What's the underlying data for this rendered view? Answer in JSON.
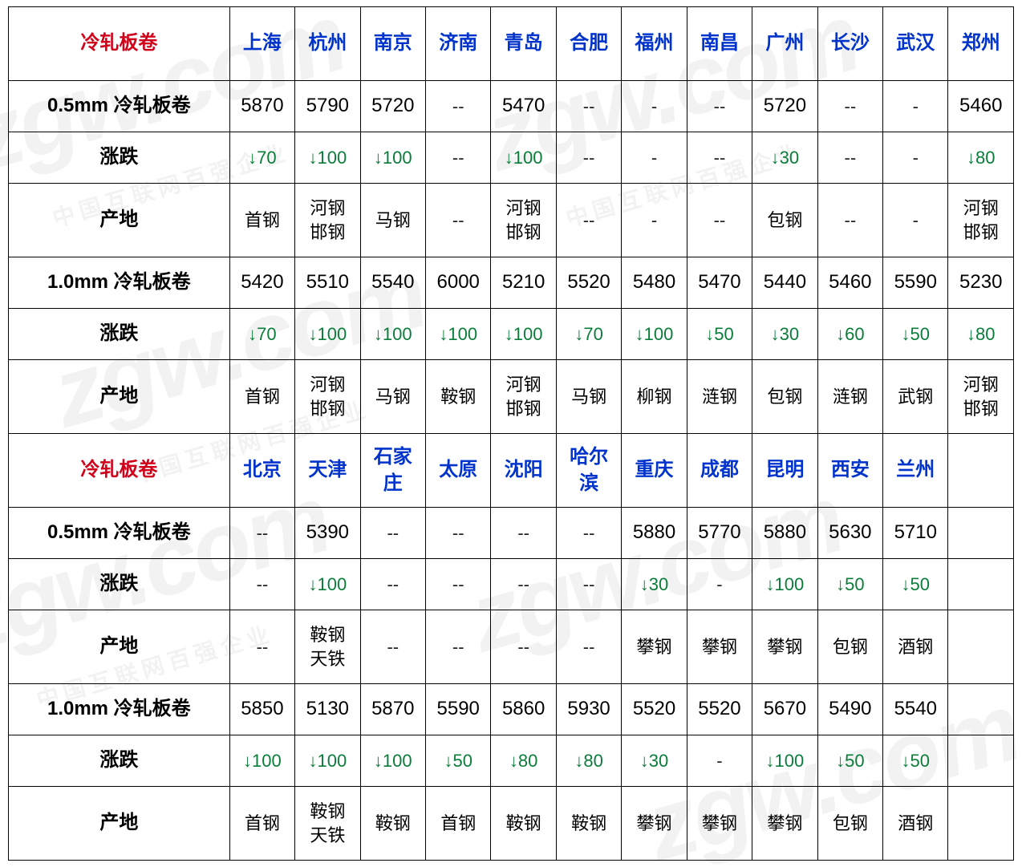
{
  "watermark": {
    "main": "zgw.com",
    "sub": "中国互联网百强企业"
  },
  "colors": {
    "border": "#000000",
    "header_red": "#d0021b",
    "city_blue": "#0033cc",
    "change_green": "#0a7d3a",
    "background": "#ffffff"
  },
  "table": {
    "col_widths": {
      "category_pct": 22,
      "city_pct": 6.5
    },
    "font_sizes": {
      "header": 24,
      "city": 24,
      "price": 24,
      "body": 22
    },
    "sections": [
      {
        "header_label": "冷轧板卷",
        "header_color": "#d0021b",
        "cities": [
          "上海",
          "杭州",
          "南京",
          "济南",
          "青岛",
          "合肥",
          "福州",
          "南昌",
          "广州",
          "长沙",
          "武汉",
          "郑州"
        ],
        "rows": [
          {
            "label": "0.5mm 冷轧板卷",
            "type": "price",
            "cells": [
              "5870",
              "5790",
              "5720",
              "--",
              "5470",
              "--",
              "-",
              "--",
              "5720",
              "--",
              "-",
              "5460"
            ]
          },
          {
            "label": "涨跌",
            "type": "change",
            "cells": [
              "↓70",
              "↓100",
              "↓100",
              "--",
              "↓100",
              "--",
              "-",
              "--",
              "↓30",
              "--",
              "-",
              "↓80"
            ]
          },
          {
            "label": "产地",
            "type": "origin",
            "tall": true,
            "cells": [
              "首钢",
              "河钢邯钢",
              "马钢",
              "--",
              "河钢邯钢",
              "--",
              "-",
              "--",
              "包钢",
              "--",
              "-",
              "河钢邯钢"
            ]
          },
          {
            "label": "1.0mm 冷轧板卷",
            "type": "price",
            "cells": [
              "5420",
              "5510",
              "5540",
              "6000",
              "5210",
              "5520",
              "5480",
              "5470",
              "5440",
              "5460",
              "5590",
              "5230"
            ]
          },
          {
            "label": "涨跌",
            "type": "change",
            "cells": [
              "↓70",
              "↓100",
              "↓100",
              "↓100",
              "↓100",
              "↓70",
              "↓100",
              "↓50",
              "↓30",
              "↓60",
              "↓50",
              "↓80"
            ]
          },
          {
            "label": "产地",
            "type": "origin",
            "tall": true,
            "cells": [
              "首钢",
              "河钢邯钢",
              "马钢",
              "鞍钢",
              "河钢邯钢",
              "马钢",
              "柳钢",
              "涟钢",
              "包钢",
              "涟钢",
              "武钢",
              "河钢邯钢"
            ]
          }
        ]
      },
      {
        "header_label": "冷轧板卷",
        "header_color": "#d0021b",
        "cities": [
          "北京",
          "天津",
          "石家庄",
          "太原",
          "沈阳",
          "哈尔滨",
          "重庆",
          "成都",
          "昆明",
          "西安",
          "兰州",
          ""
        ],
        "rows": [
          {
            "label": "0.5mm 冷轧板卷",
            "type": "price",
            "cells": [
              "--",
              "5390",
              "--",
              "--",
              "--",
              "--",
              "5880",
              "5770",
              "5880",
              "5630",
              "5710",
              ""
            ]
          },
          {
            "label": "涨跌",
            "type": "change",
            "cells": [
              "--",
              "↓100",
              "--",
              "--",
              "--",
              "--",
              "↓30",
              "-",
              "↓100",
              "↓50",
              "↓50",
              ""
            ]
          },
          {
            "label": "产地",
            "type": "origin",
            "tall": true,
            "cells": [
              "--",
              "鞍钢天铁",
              "--",
              "--",
              "--",
              "--",
              "攀钢",
              "攀钢",
              "攀钢",
              "包钢",
              "酒钢",
              ""
            ]
          },
          {
            "label": "1.0mm 冷轧板卷",
            "type": "price",
            "cells": [
              "5850",
              "5130",
              "5870",
              "5590",
              "5860",
              "5930",
              "5520",
              "5520",
              "5670",
              "5490",
              "5540",
              ""
            ]
          },
          {
            "label": "涨跌",
            "type": "change",
            "cells": [
              "↓100",
              "↓100",
              "↓100",
              "↓50",
              "↓80",
              "↓80",
              "↓30",
              "-",
              "↓100",
              "↓50",
              "↓50",
              ""
            ]
          },
          {
            "label": "产地",
            "type": "origin",
            "tall": true,
            "cells": [
              "首钢",
              "鞍钢天铁",
              "鞍钢",
              "首钢",
              "鞍钢",
              "鞍钢",
              "攀钢",
              "攀钢",
              "攀钢",
              "包钢",
              "酒钢",
              ""
            ]
          }
        ]
      }
    ]
  }
}
